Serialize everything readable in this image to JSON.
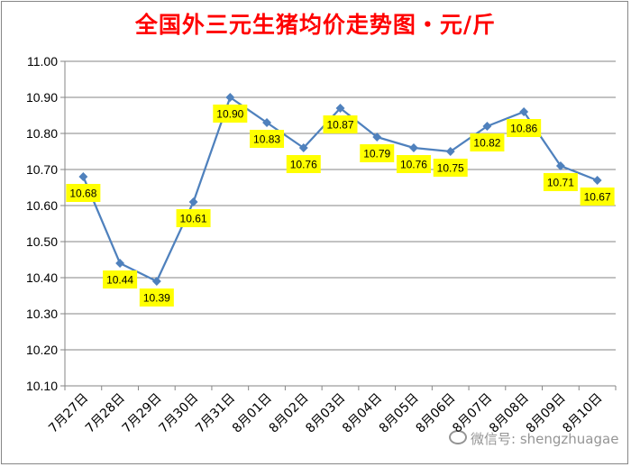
{
  "title": "全国外三元生猪均价走势图・元/斤",
  "watermark": "微信号: shengzhuagae",
  "colors": {
    "line": "#4f81bd",
    "label_bg": "#ffff00",
    "title": "#ff0000",
    "grid": "#868686"
  },
  "chart_data": {
    "type": "line",
    "title": "全国外三元生猪均价走势图・元/斤",
    "xlabel": "",
    "ylabel": "",
    "ylim": [
      10.1,
      11.0
    ],
    "y_ticks": [
      "10.10",
      "10.20",
      "10.30",
      "10.40",
      "10.50",
      "10.60",
      "10.70",
      "10.80",
      "10.90",
      "11.00"
    ],
    "grid": true,
    "legend": "none",
    "categories": [
      "7月27日",
      "7月28日",
      "7月29日",
      "7月30日",
      "7月31日",
      "8月01日",
      "8月02日",
      "8月03日",
      "8月04日",
      "8月05日",
      "8月06日",
      "8月07日",
      "8月08日",
      "8月09日",
      "8月10日"
    ],
    "series": [
      {
        "values": [
          10.68,
          10.44,
          10.39,
          10.61,
          10.9,
          10.83,
          10.76,
          10.87,
          10.79,
          10.76,
          10.75,
          10.82,
          10.86,
          10.71,
          10.67
        ],
        "labels": [
          "10.68",
          "10.44",
          "10.39",
          "10.61",
          "10.90",
          "10.83",
          "10.76",
          "10.87",
          "10.79",
          "10.76",
          "10.75",
          "10.82",
          "10.86",
          "10.71",
          "10.67"
        ]
      }
    ]
  }
}
